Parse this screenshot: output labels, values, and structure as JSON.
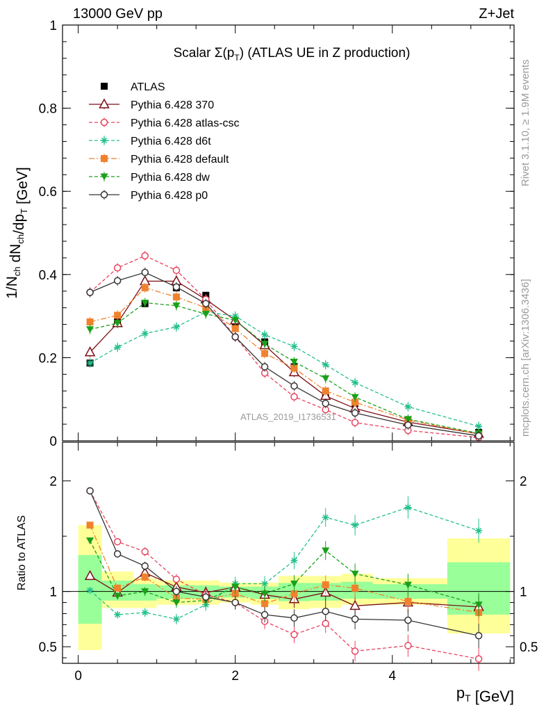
{
  "header": {
    "left": "13000 GeV pp",
    "right": "Z+Jet"
  },
  "side_labels": {
    "rivet": "Rivet 3.1.10, ≥ 1.9M events",
    "mcplots": "mcplots.cern.ch [arXiv:1306.3436]"
  },
  "chart_data": {
    "type": "line",
    "title": "Scalar Σ(p_T) (ATLAS UE in Z production)",
    "watermark": "ATLAS_2019_I1736531",
    "xlabel": "p_T [GeV]",
    "ylabel": "1/N_ch dN_ch/dp_T [GeV]",
    "ratio_ylabel": "Ratio to ATLAS",
    "xlim": [
      -0.2,
      5.55
    ],
    "ylim": [
      0,
      1
    ],
    "ratio_ylim": [
      0.35,
      2.35
    ],
    "x_ticks": [
      "0",
      "2",
      "4"
    ],
    "y_ticks": [
      "0",
      "0.2",
      "0.4",
      "0.6",
      "0.8",
      "1"
    ],
    "ratio_ticks": [
      "0.5",
      "1",
      "2"
    ],
    "legend_position": "top-left",
    "x": [
      0.15,
      0.5,
      0.85,
      1.25,
      1.625,
      2.0,
      2.375,
      2.75,
      3.15,
      3.525,
      4.2,
      5.1
    ],
    "band_edges": [
      0.0,
      0.3,
      0.7,
      1.0,
      1.45,
      1.8,
      2.2,
      2.55,
      2.95,
      3.35,
      3.75,
      4.7,
      5.5
    ],
    "data": {
      "name": "ATLAS",
      "values": [
        0.187,
        0.287,
        0.33,
        0.368,
        0.35,
        0.279,
        0.238,
        0.178,
        0.11,
        0.09,
        0.05,
        0.02
      ],
      "errors": [
        0.006,
        0.008,
        0.008,
        0.008,
        0.008,
        0.007,
        0.007,
        0.006,
        0.005,
        0.005,
        0.003,
        0.002
      ],
      "band_outer": [
        [
          0.47,
          1.6
        ],
        [
          0.85,
          1.18
        ],
        [
          0.85,
          1.12
        ],
        [
          0.88,
          1.1
        ],
        [
          0.88,
          1.1
        ],
        [
          0.9,
          1.08
        ],
        [
          0.88,
          1.08
        ],
        [
          0.84,
          1.14
        ],
        [
          0.85,
          1.14
        ],
        [
          0.88,
          1.16
        ],
        [
          0.88,
          1.12
        ],
        [
          0.62,
          1.48
        ]
      ]
    },
    "series": [
      {
        "name": "Pythia 6.428 370",
        "color": "#7b0f16",
        "marker": "triangle-open",
        "dash": "solid",
        "values": [
          0.213,
          0.283,
          0.384,
          0.384,
          0.34,
          0.29,
          0.23,
          0.165,
          0.108,
          0.078,
          0.045,
          0.017
        ],
        "ratio": [
          1.14,
          0.99,
          1.17,
          1.04,
          0.99,
          1.04,
          0.97,
          0.93,
          0.99,
          0.87,
          0.9,
          0.86
        ]
      },
      {
        "name": "Pythia 6.428 atlas-csc",
        "color": "#e8435e",
        "marker": "circle-open",
        "dash": "dashed",
        "values": [
          0.357,
          0.416,
          0.445,
          0.41,
          0.34,
          0.25,
          0.163,
          0.106,
          0.075,
          0.044,
          0.025,
          0.008
        ],
        "ratio": [
          1.91,
          1.45,
          1.36,
          1.11,
          0.97,
          0.9,
          0.73,
          0.61,
          0.71,
          0.46,
          0.51,
          0.39
        ]
      },
      {
        "name": "Pythia 6.428 d6t",
        "color": "#22c08a",
        "marker": "star",
        "dash": "dashed",
        "values": [
          0.187,
          0.225,
          0.258,
          0.274,
          0.31,
          0.3,
          0.255,
          0.227,
          0.183,
          0.14,
          0.082,
          0.035
        ],
        "ratio": [
          1.01,
          0.79,
          0.81,
          0.75,
          0.88,
          1.07,
          1.07,
          1.28,
          1.67,
          1.6,
          1.76,
          1.55
        ]
      },
      {
        "name": "Pythia 6.428 default",
        "color": "#f0822e",
        "marker": "square",
        "dash": "dashdot",
        "values": [
          0.286,
          0.302,
          0.368,
          0.346,
          0.32,
          0.27,
          0.21,
          0.175,
          0.12,
          0.093,
          0.05,
          0.016
        ],
        "ratio": [
          1.6,
          1.03,
          1.13,
          0.94,
          0.93,
          0.98,
          0.89,
          0.98,
          1.06,
          1.03,
          0.91,
          0.81
        ]
      },
      {
        "name": "Pythia 6.428 dw",
        "color": "#1aa01a",
        "marker": "triangle-down",
        "dash": "dashed",
        "values": [
          0.268,
          0.283,
          0.332,
          0.325,
          0.305,
          0.29,
          0.233,
          0.19,
          0.15,
          0.105,
          0.052,
          0.018
        ],
        "ratio": [
          1.46,
          0.96,
          1.0,
          0.9,
          0.92,
          1.04,
          0.98,
          1.07,
          1.37,
          1.16,
          1.06,
          0.88
        ]
      },
      {
        "name": "Pythia 6.428 p0",
        "color": "#333333",
        "marker": "circle-open",
        "dash": "solid",
        "values": [
          0.357,
          0.385,
          0.405,
          0.37,
          0.33,
          0.25,
          0.178,
          0.132,
          0.09,
          0.067,
          0.038,
          0.012
        ],
        "ratio": [
          1.91,
          1.34,
          1.23,
          1.0,
          0.95,
          0.9,
          0.79,
          0.76,
          0.82,
          0.75,
          0.74,
          0.6
        ]
      }
    ]
  }
}
